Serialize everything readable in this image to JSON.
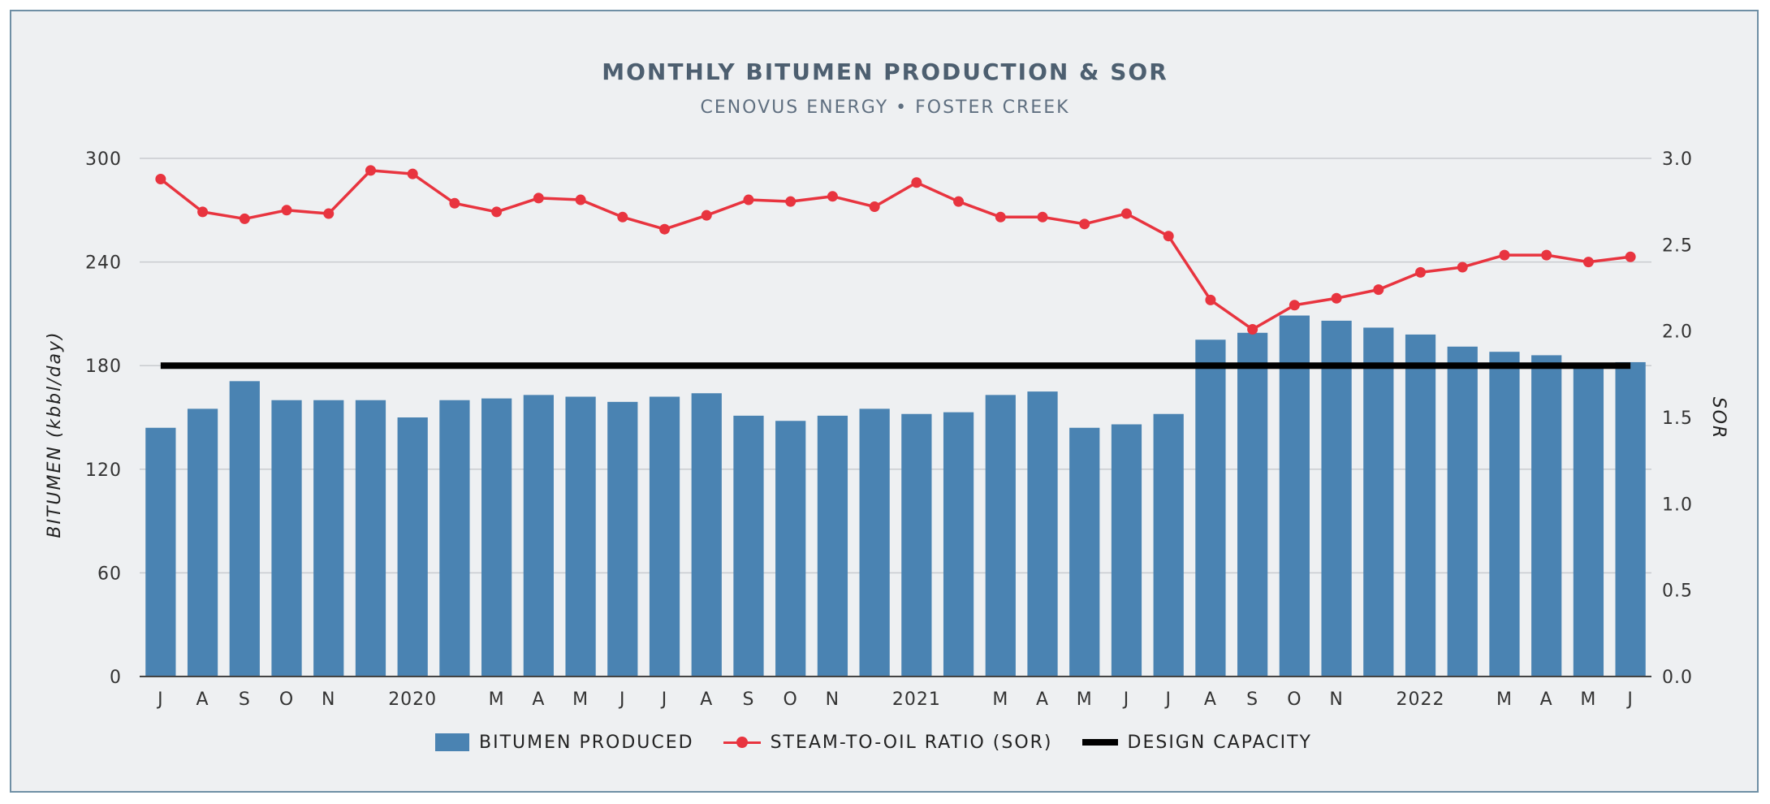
{
  "chart_data": {
    "type": "bar+line",
    "title": "MONTHLY BITUMEN PRODUCTION & SOR",
    "subtitle": "CENOVUS ENERGY • FOSTER CREEK",
    "ylabel": "BITUMEN (kbbl/day)",
    "y2label": "SOR",
    "ylim": [
      0,
      300
    ],
    "y2lim": [
      0,
      3.0
    ],
    "yticks": [
      "0",
      "60",
      "120",
      "180",
      "240",
      "300"
    ],
    "y2ticks": [
      "0.0",
      "0.5",
      "1.0",
      "1.5",
      "2.0",
      "2.5",
      "3.0"
    ],
    "categories": [
      "J",
      "A",
      "S",
      "O",
      "N",
      "",
      "2020",
      "",
      "M",
      "A",
      "M",
      "J",
      "J",
      "A",
      "S",
      "O",
      "N",
      "",
      "2021",
      "",
      "M",
      "A",
      "M",
      "J",
      "J",
      "A",
      "S",
      "O",
      "N",
      "",
      "2022",
      "",
      "M",
      "A",
      "M",
      "J"
    ],
    "series": [
      {
        "name": "BITUMEN PRODUCED",
        "type": "bar",
        "color": "#4a83b2",
        "values": [
          144,
          155,
          171,
          160,
          160,
          160,
          150,
          160,
          161,
          163,
          162,
          159,
          162,
          164,
          151,
          148,
          151,
          155,
          152,
          153,
          163,
          165,
          144,
          146,
          152,
          195,
          199,
          209,
          206,
          202,
          198,
          191,
          188,
          186,
          181,
          182
        ]
      },
      {
        "name": "STEAM-TO-OIL RATIO (SOR)",
        "type": "line",
        "axis": "right",
        "color": "#e8343f",
        "values": [
          2.88,
          2.69,
          2.65,
          2.7,
          2.68,
          2.93,
          2.91,
          2.74,
          2.69,
          2.77,
          2.76,
          2.66,
          2.59,
          2.67,
          2.76,
          2.75,
          2.78,
          2.72,
          2.86,
          2.75,
          2.66,
          2.66,
          2.62,
          2.68,
          2.55,
          2.18,
          2.01,
          2.15,
          2.19,
          2.24,
          2.34,
          2.37,
          2.44,
          2.44,
          2.4,
          2.43
        ]
      },
      {
        "name": "DESIGN CAPACITY",
        "type": "reference",
        "color": "#000000",
        "value": 180
      }
    ],
    "legend_position": "bottom",
    "grid": true
  }
}
